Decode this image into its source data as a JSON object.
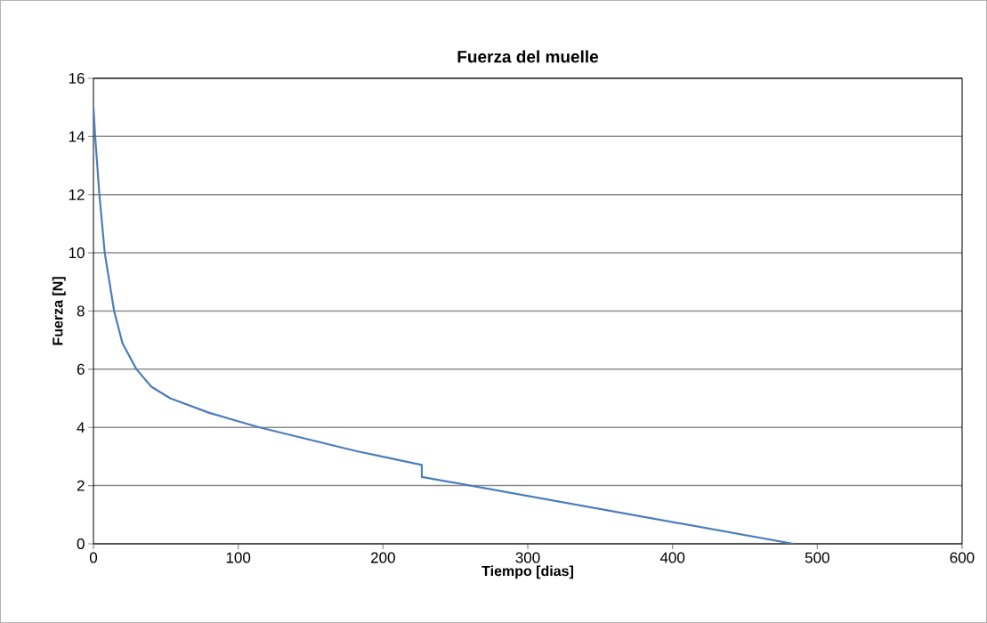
{
  "chart_data": {
    "type": "line",
    "title": "Fuerza del muelle",
    "xlabel": "Tiempo [dias]",
    "ylabel": "Fuerza [N]",
    "x": [
      0,
      1.2,
      4.1,
      7.8,
      14.3,
      20,
      29.7,
      40,
      53,
      80,
      114.7,
      181.3,
      226.8,
      226.8,
      483.5
    ],
    "series": [
      {
        "color": "#4a7ebb",
        "values": [
          15,
          14,
          12,
          10,
          8,
          6.9,
          6,
          5.4,
          5.0,
          4.5,
          4,
          3.19,
          2.71,
          2.3,
          0
        ]
      }
    ],
    "xlim": [
      0,
      600
    ],
    "ylim": [
      0,
      16
    ],
    "xticks": [
      0,
      100,
      200,
      300,
      400,
      500,
      600
    ],
    "yticks": [
      0,
      2,
      4,
      6,
      8,
      10,
      12,
      14,
      16
    ],
    "grid": "y"
  }
}
